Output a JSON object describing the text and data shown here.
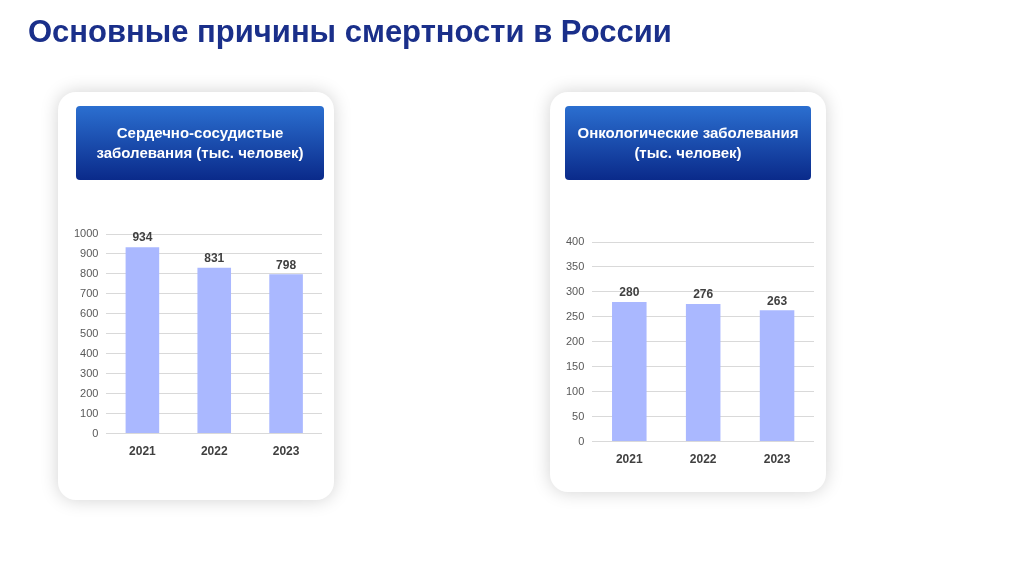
{
  "chart_data": [
    {
      "type": "bar",
      "title": "Сердечно-сосудистые заболевания (тыс. человек)",
      "annotations": [
        "Основные причины смертности в России"
      ],
      "categories": [
        "2021",
        "2022",
        "2023"
      ],
      "values": [
        934,
        831,
        798
      ],
      "color": "#aab8ff",
      "ylim": [
        0,
        1000
      ],
      "yticks": [
        0,
        100,
        200,
        300,
        400,
        500,
        600,
        700,
        800,
        900,
        1000
      ],
      "grid": "y",
      "data_labels": true,
      "legend": false
    },
    {
      "type": "bar",
      "title": "Онкологические заболевания (тыс. человек)",
      "categories": [
        "2021",
        "2022",
        "2023"
      ],
      "values": [
        280,
        276,
        263
      ],
      "color": "#aab8ff",
      "ylim": [
        0,
        400
      ],
      "yticks": [
        0,
        50,
        100,
        150,
        200,
        250,
        300,
        350,
        400
      ],
      "grid": "y",
      "data_labels": true,
      "legend": false
    }
  ]
}
